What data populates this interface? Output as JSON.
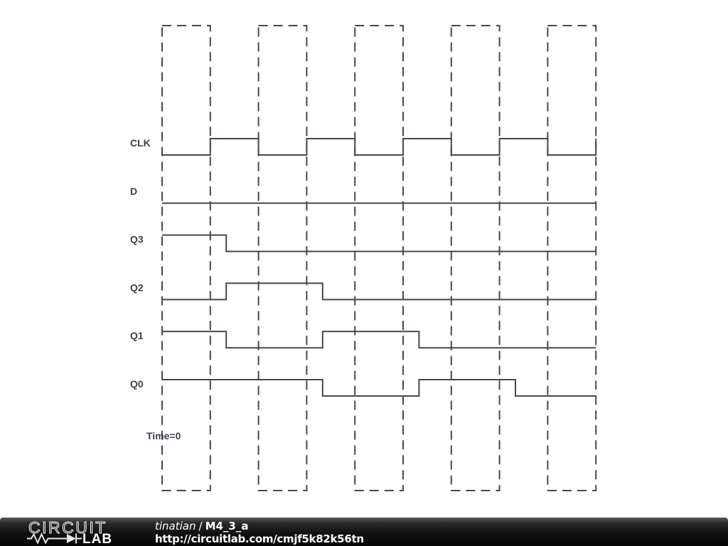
{
  "colors": {
    "background": "#ffffff",
    "wave_stroke": "#414a52",
    "label_text": "#3a434c",
    "footer_text": "#ffffff"
  },
  "chart_data": {
    "type": "line",
    "subtype": "digital-timing-diagram",
    "title": "",
    "xlabel": "",
    "ylabel": "",
    "x_unit": "half clock period",
    "x_range": [
      0,
      9
    ],
    "grid": "dashed-interval-boxes",
    "legend_position": "left",
    "time_marker_label": "Time=0",
    "sample_interval_boxes": [
      [
        0,
        1
      ],
      [
        2,
        3
      ],
      [
        4,
        5
      ],
      [
        6,
        7
      ],
      [
        8,
        9
      ]
    ],
    "signals": [
      {
        "name": "CLK",
        "points": [
          [
            0,
            0
          ],
          [
            1,
            1
          ],
          [
            2,
            0
          ],
          [
            3,
            1
          ],
          [
            4,
            0
          ],
          [
            5,
            1
          ],
          [
            6,
            0
          ],
          [
            7,
            1
          ],
          [
            8,
            0
          ],
          [
            9,
            1
          ]
        ]
      },
      {
        "name": "D",
        "points": [
          [
            0,
            0
          ]
        ]
      },
      {
        "name": "Q3",
        "points": [
          [
            0,
            1
          ],
          [
            1.33,
            0
          ]
        ]
      },
      {
        "name": "Q2",
        "points": [
          [
            0,
            0
          ],
          [
            1.33,
            1
          ],
          [
            3.33,
            0
          ]
        ]
      },
      {
        "name": "Q1",
        "points": [
          [
            0,
            1
          ],
          [
            1.33,
            0
          ],
          [
            3.33,
            1
          ],
          [
            5.33,
            0
          ]
        ]
      },
      {
        "name": "Q0",
        "points": [
          [
            0,
            1
          ],
          [
            3.33,
            0
          ],
          [
            5.33,
            1
          ],
          [
            7.33,
            0
          ]
        ]
      }
    ]
  },
  "footer": {
    "logo_word_top": "CIRCUIT",
    "logo_word_bottom": "LAB",
    "author": "tinatian",
    "separator": "/",
    "title": "M4_3_a",
    "url": "http://circuitlab.com/cmjf5k82k56tn"
  }
}
